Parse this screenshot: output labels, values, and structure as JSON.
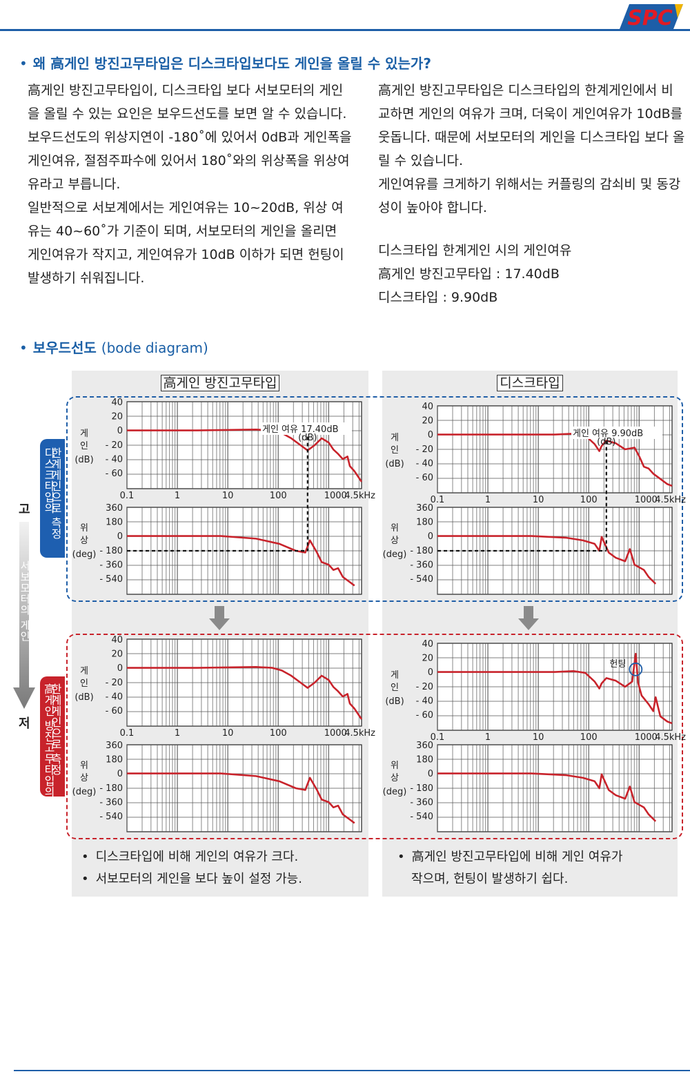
{
  "header": {
    "logo_text": "SPC"
  },
  "section1": {
    "bullet": "•",
    "title": "왜 高게인 방진고무타입은 디스크타입보다도 게인을 올릴 수 있는가?",
    "left_paragraphs": [
      "高게인 방진고무타입이, 디스크타입 보다 서보모터의 게인을 올릴 수 있는 요인은 보우드선도를 보면 알 수 있습니다.",
      "보우드선도의 위상지연이 -180˚에 있어서 0dB과 게인폭을 게인여유, 절점주파수에 있어서 180˚와의 위상폭을 위상여유라고 부릅니다.",
      "일반적으로 서보계에서는 게인여유는 10~20dB, 위상 여유는 40~60˚가 기준이 되며, 서보모터의 게인을 올리면 게인여유가 작지고, 게인여유가 10dB 이하가 되면 헌팅이 발생하기 쉬워집니다."
    ],
    "right_paragraphs": [
      "高게인 방진고무타입은 디스크타입의 한계게인에서 비교하면 게인의 여유가 크며, 더욱이 게인여유가 10dB를 웃돕니다. 때문에 서보모터의 게인을 디스크타입 보다 올릴 수 있습니다.",
      "게인여유를 크게하기 위해서는 커플링의 감쇠비 및 동강성이 높아야 합니다."
    ],
    "margin_lines": [
      "디스크타입 한계게인 시의 게인여유",
      "高게인 방진고무타입 : 17.40dB",
      "디스크타입 : 9.90dB"
    ]
  },
  "section2": {
    "bullet": "•",
    "title": "보우드선도",
    "title_suffix": "(bode diagram)"
  },
  "panels": {
    "left_title": "高게인 방진고무타입",
    "right_title": "디스크타입",
    "left_notes": [
      "디스크타입에 비해 게인의 여유가 크다.",
      "서보모터의 게인을 보다 높이 설정 가능."
    ],
    "right_notes": [
      "高게인 방진고무타입에 비해 게인 여유가",
      "작으며, 헌팅이 발생하기 쉽다."
    ],
    "note_bullet": "•"
  },
  "side": {
    "high": "고",
    "low": "저",
    "arrow_label": "서보모터의 게인",
    "blue_box_lines": [
      "디스크타입의",
      "한계게인으로 측정"
    ],
    "red_box_lines": [
      "高게인 방진고무타입의",
      "한계게인으로 측정"
    ]
  },
  "axis": {
    "gain_label": "게인",
    "gain_unit": "(dB)",
    "phase_label": "위상",
    "phase_unit": "(deg)",
    "gain_ticks": [
      "40",
      "20",
      "0",
      "- 20",
      "- 40",
      "- 60"
    ],
    "phase_ticks": [
      "360",
      "180",
      "0",
      "- 180",
      "- 360",
      "- 540"
    ],
    "freq_ticks": [
      "0.1",
      "1",
      "10",
      "100",
      "1000",
      "4.5kHz"
    ]
  },
  "annotations": {
    "margin_high": "게인 여유 17.40dB",
    "margin_disc": "게인 여유 9.90dB",
    "db_small": "(dB)",
    "hunting": "헌팅"
  },
  "colors": {
    "brand_blue": "#1d5ea8",
    "curve_red": "#c8232b",
    "panel_gray": "#ebebeb"
  }
}
